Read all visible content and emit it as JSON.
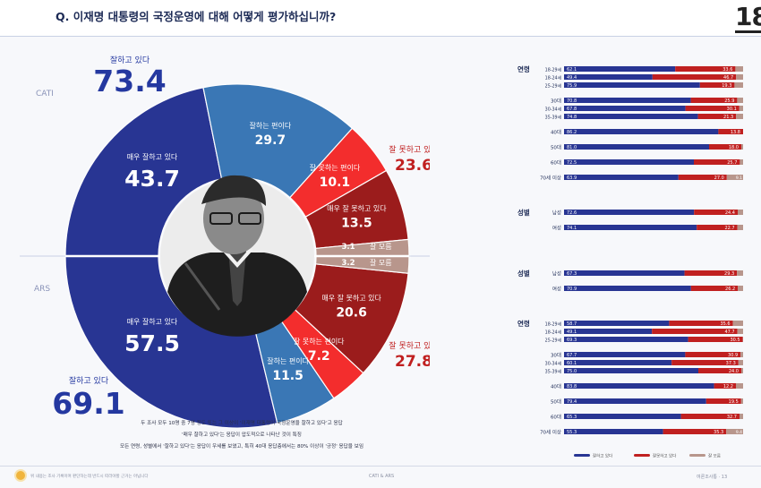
{
  "header": {
    "question": "Q. 이재명 대통령의 국정운영에 대해 어떻게 평가하십니까?",
    "logo": "18"
  },
  "colors": {
    "very_good": "#283593",
    "good": "#3a77b5",
    "bad": "#f32d2d",
    "very_bad": "#9b1c1c",
    "dont_know": "#b8968c",
    "positive_text": "#2438a0",
    "negative_text": "#c02020"
  },
  "chart_data": [
    {
      "type": "pie",
      "subtype": "double half donut",
      "halves": [
        {
          "method": "CATI",
          "total_positive_label": "잘하고 있다",
          "total_positive": 73.4,
          "total_negative_label": "잘 못하고 있다",
          "total_negative": 23.6,
          "slices": [
            {
              "label": "매우 잘하고 있다",
              "value": 43.7
            },
            {
              "label": "잘하는 편이다",
              "value": 29.7
            },
            {
              "label": "잘 못하는 편이다",
              "value": 10.1
            },
            {
              "label": "매우 잘 못하고 있다",
              "value": 13.5
            },
            {
              "label": "잘 모름",
              "value": 3.1
            }
          ]
        },
        {
          "method": "ARS",
          "total_positive_label": "잘하고 있다",
          "total_positive": 69.1,
          "total_negative_label": "잘 못하고 있다",
          "total_negative": 27.8,
          "slices": [
            {
              "label": "매우 잘하고 있다",
              "value": 57.5
            },
            {
              "label": "잘하는 편이다",
              "value": 11.5
            },
            {
              "label": "잘 못하는 편이다",
              "value": 7.2
            },
            {
              "label": "매우 잘 못하고 있다",
              "value": 20.6
            },
            {
              "label": "잘 모름",
              "value": 3.2
            }
          ]
        }
      ]
    },
    {
      "type": "bar",
      "subtype": "100% stacked horizontal",
      "method": "CATI",
      "series": [
        {
          "name": "잘하고 있다"
        },
        {
          "name": "잘못하고 있다"
        },
        {
          "name": "잘 모름"
        }
      ],
      "groups": [
        {
          "label": "연령",
          "rows": [
            {
              "label": "18-29세",
              "pos": 62.1,
              "neg": 33.6
            },
            {
              "label": "18-24세",
              "pos": 49.4,
              "neg": 46.7
            },
            {
              "label": "25-29세",
              "pos": 75.9,
              "neg": 19.3
            },
            {
              "label": "30대",
              "pos": 70.8,
              "neg": 25.9
            },
            {
              "label": "30-34세",
              "pos": 67.8,
              "neg": 30.1
            },
            {
              "label": "35-39세",
              "pos": 74.8,
              "neg": 21.3
            },
            {
              "label": "40대",
              "pos": 86.2,
              "neg": 13.8
            },
            {
              "label": "50대",
              "pos": 81.0,
              "neg": 18.0
            },
            {
              "label": "60대",
              "pos": 72.5,
              "neg": 25.7
            },
            {
              "label": "70세 이상",
              "pos": 63.9,
              "neg": 27.0,
              "dk": 9.1
            }
          ]
        },
        {
          "label": "성별",
          "rows": [
            {
              "label": "남성",
              "pos": 72.6,
              "neg": 24.4
            },
            {
              "label": "여성",
              "pos": 74.1,
              "neg": 22.7
            }
          ]
        }
      ]
    },
    {
      "type": "bar",
      "subtype": "100% stacked horizontal",
      "method": "ARS",
      "groups": [
        {
          "label": "성별",
          "rows": [
            {
              "label": "남성",
              "pos": 67.3,
              "neg": 29.3
            },
            {
              "label": "여성",
              "pos": 70.9,
              "neg": 26.2
            }
          ]
        },
        {
          "label": "연령",
          "rows": [
            {
              "label": "18-29세",
              "pos": 58.7,
              "neg": 35.6
            },
            {
              "label": "18-24세",
              "pos": 49.1,
              "neg": 47.7
            },
            {
              "label": "25-29세",
              "pos": 69.3,
              "neg": 30.5
            },
            {
              "label": "30대",
              "pos": 67.7,
              "neg": 30.9
            },
            {
              "label": "30-34세",
              "pos": 60.1,
              "neg": 37.3
            },
            {
              "label": "35-39세",
              "pos": 75.0,
              "neg": 24.0
            },
            {
              "label": "40대",
              "pos": 83.8,
              "neg": 12.2
            },
            {
              "label": "50대",
              "pos": 79.4,
              "neg": 19.5
            },
            {
              "label": "60대",
              "pos": 65.3,
              "neg": 32.7
            },
            {
              "label": "70세 이상",
              "pos": 55.3,
              "neg": 35.3,
              "dk": 9.4
            }
          ]
        }
      ]
    }
  ],
  "summary_lines": [
    "두 조사 모두 10명 중 7명 정도 또는 그 이상이 '이재명 대통령이 국정운영을 잘하고 있다'고 응답",
    "'매우 잘하고 있다'는 응답이 압도적으로 나타난 것이 특징",
    "모든 연령, 성별에서 '잘하고 있다'는 응답이 우세를 보였고, 특히 40대 응답층에서는 80% 이상이 '긍정' 응답을 보임"
  ],
  "footer": {
    "left": "위 내용는 조사 기록이며 판단하는데 반드시 따라야할 근거는 아닙니다",
    "center": "CATI & ARS",
    "right": "여론조사통 · 13"
  }
}
